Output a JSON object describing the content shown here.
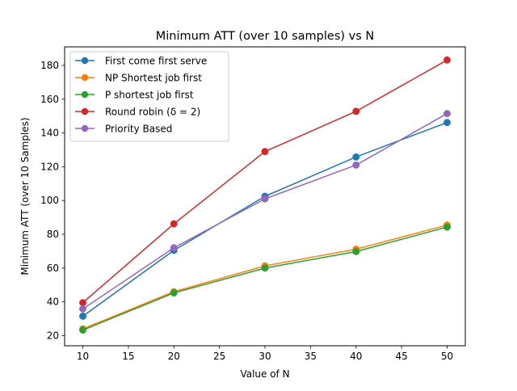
{
  "chart_data": {
    "type": "line",
    "title": "Minimum ATT (over 10 samples) vs N",
    "xlabel": "Value of N",
    "ylabel": "Minimum ATT (over 10 Samples)",
    "x": [
      10,
      20,
      30,
      40,
      50
    ],
    "xlim": [
      8,
      52
    ],
    "ylim": [
      14.0,
      191.0
    ],
    "xticks": [
      "10",
      "15",
      "20",
      "25",
      "30",
      "35",
      "40",
      "45",
      "50"
    ],
    "yticks": [
      "20",
      "40",
      "60",
      "80",
      "100",
      "120",
      "140",
      "160",
      "180"
    ],
    "grid": false,
    "legend_position": "top-left",
    "series": [
      {
        "name": "First come first serve",
        "color": "#1f77b4",
        "values": [
          31.5,
          70.5,
          102.5,
          125.8,
          146.2
        ]
      },
      {
        "name": "NP Shortest job first",
        "color": "#ff7f0e",
        "values": [
          24.0,
          46.0,
          61.3,
          71.2,
          85.5
        ]
      },
      {
        "name": "P shortest job first",
        "color": "#2ca02c",
        "values": [
          23.3,
          45.3,
          60.0,
          69.8,
          84.3
        ]
      },
      {
        "name": "Round robin (δ = 2)",
        "color": "#d62728",
        "values": [
          39.5,
          86.2,
          129.0,
          152.8,
          183.2
        ]
      },
      {
        "name": "Priority Based",
        "color": "#9467bd",
        "values": [
          35.8,
          72.0,
          101.0,
          121.0,
          151.5
        ]
      }
    ]
  }
}
